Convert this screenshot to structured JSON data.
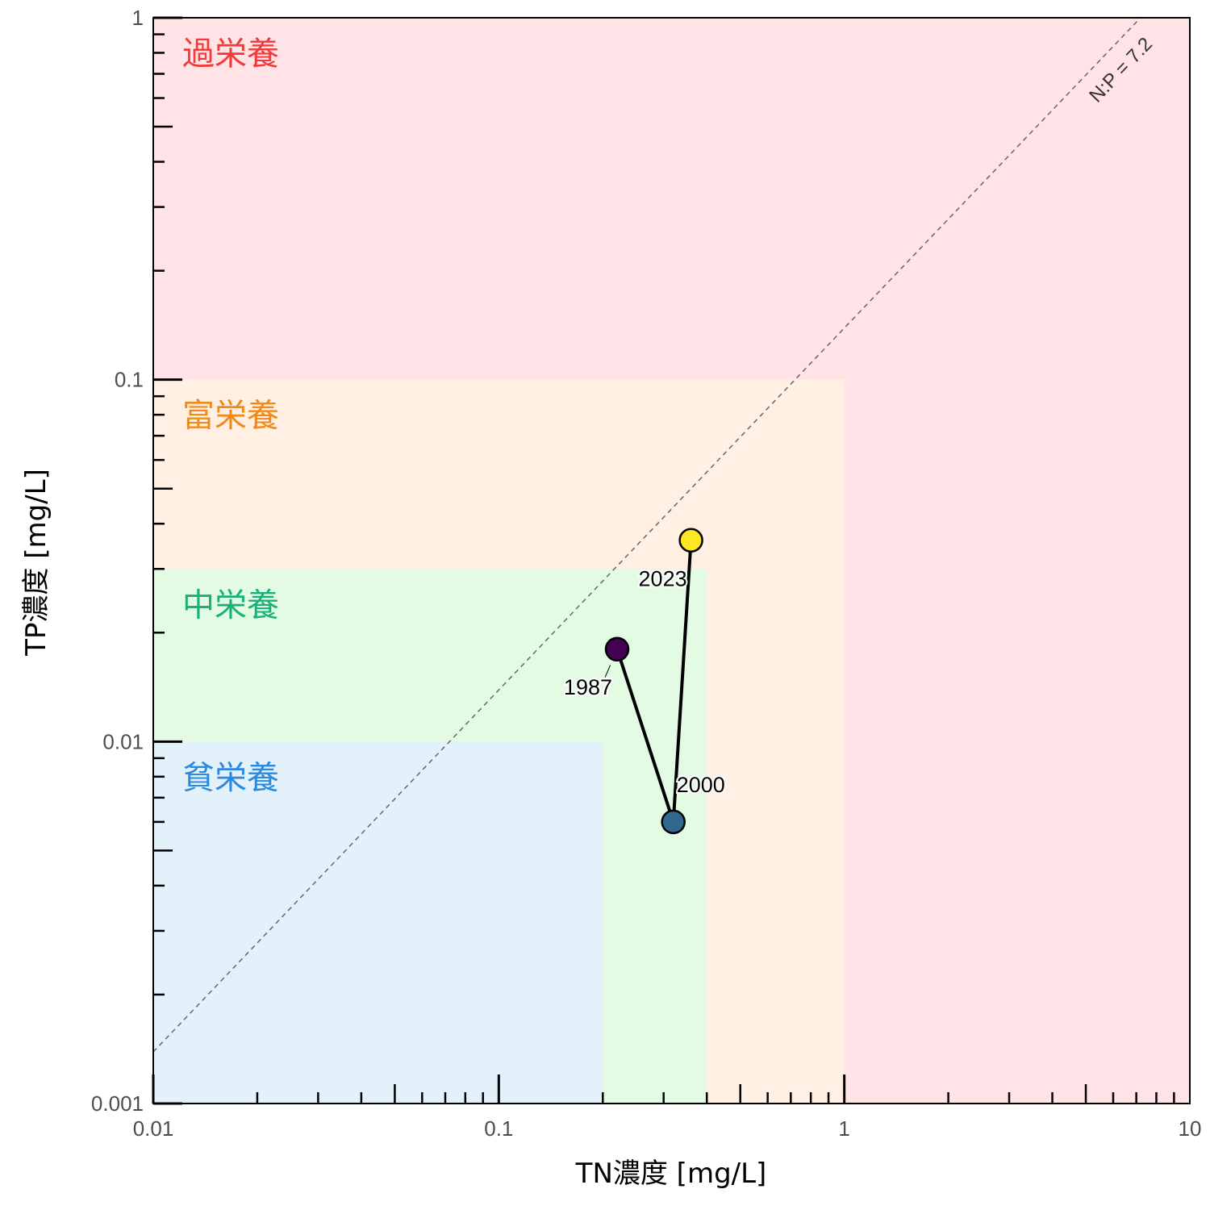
{
  "chart_data": {
    "type": "scatter",
    "x_scale": "log",
    "y_scale": "log",
    "xlim": [
      0.01,
      10
    ],
    "ylim": [
      0.001,
      1
    ],
    "xlabel": "TN濃度 [mg/L]",
    "ylabel": "TP濃度 [mg/L]",
    "x_ticks": [
      "0.01",
      "0.1",
      "1",
      "10"
    ],
    "y_ticks": [
      "0.001",
      "0.01",
      "0.1",
      "1"
    ],
    "grid": false,
    "zones": [
      {
        "label": "過栄養",
        "tn_max": 10,
        "tp_max": 1,
        "fill": "#ffe3e6",
        "label_color": "#f23a3a"
      },
      {
        "label": "富栄養",
        "tn_max": 1,
        "tp_max": 0.1,
        "fill": "#fff0e3",
        "label_color": "#f28a1a"
      },
      {
        "label": "中栄養",
        "tn_max": 0.4,
        "tp_max": 0.03,
        "fill": "#e3fbe3",
        "label_color": "#1ab07a"
      },
      {
        "label": "貧栄養",
        "tn_max": 0.2,
        "tp_max": 0.01,
        "fill": "#e3f1fb",
        "label_color": "#2a8ae0"
      }
    ],
    "ratio_line": {
      "label": "N:P = 7.2",
      "ratio": 7.2
    },
    "points": [
      {
        "year": "1987",
        "tn": 0.22,
        "tp": 0.018,
        "color": "#440154"
      },
      {
        "year": "2000",
        "tn": 0.32,
        "tp": 0.006,
        "color": "#31688e"
      },
      {
        "year": "2023",
        "tn": 0.36,
        "tp": 0.036,
        "color": "#fde725"
      }
    ]
  }
}
